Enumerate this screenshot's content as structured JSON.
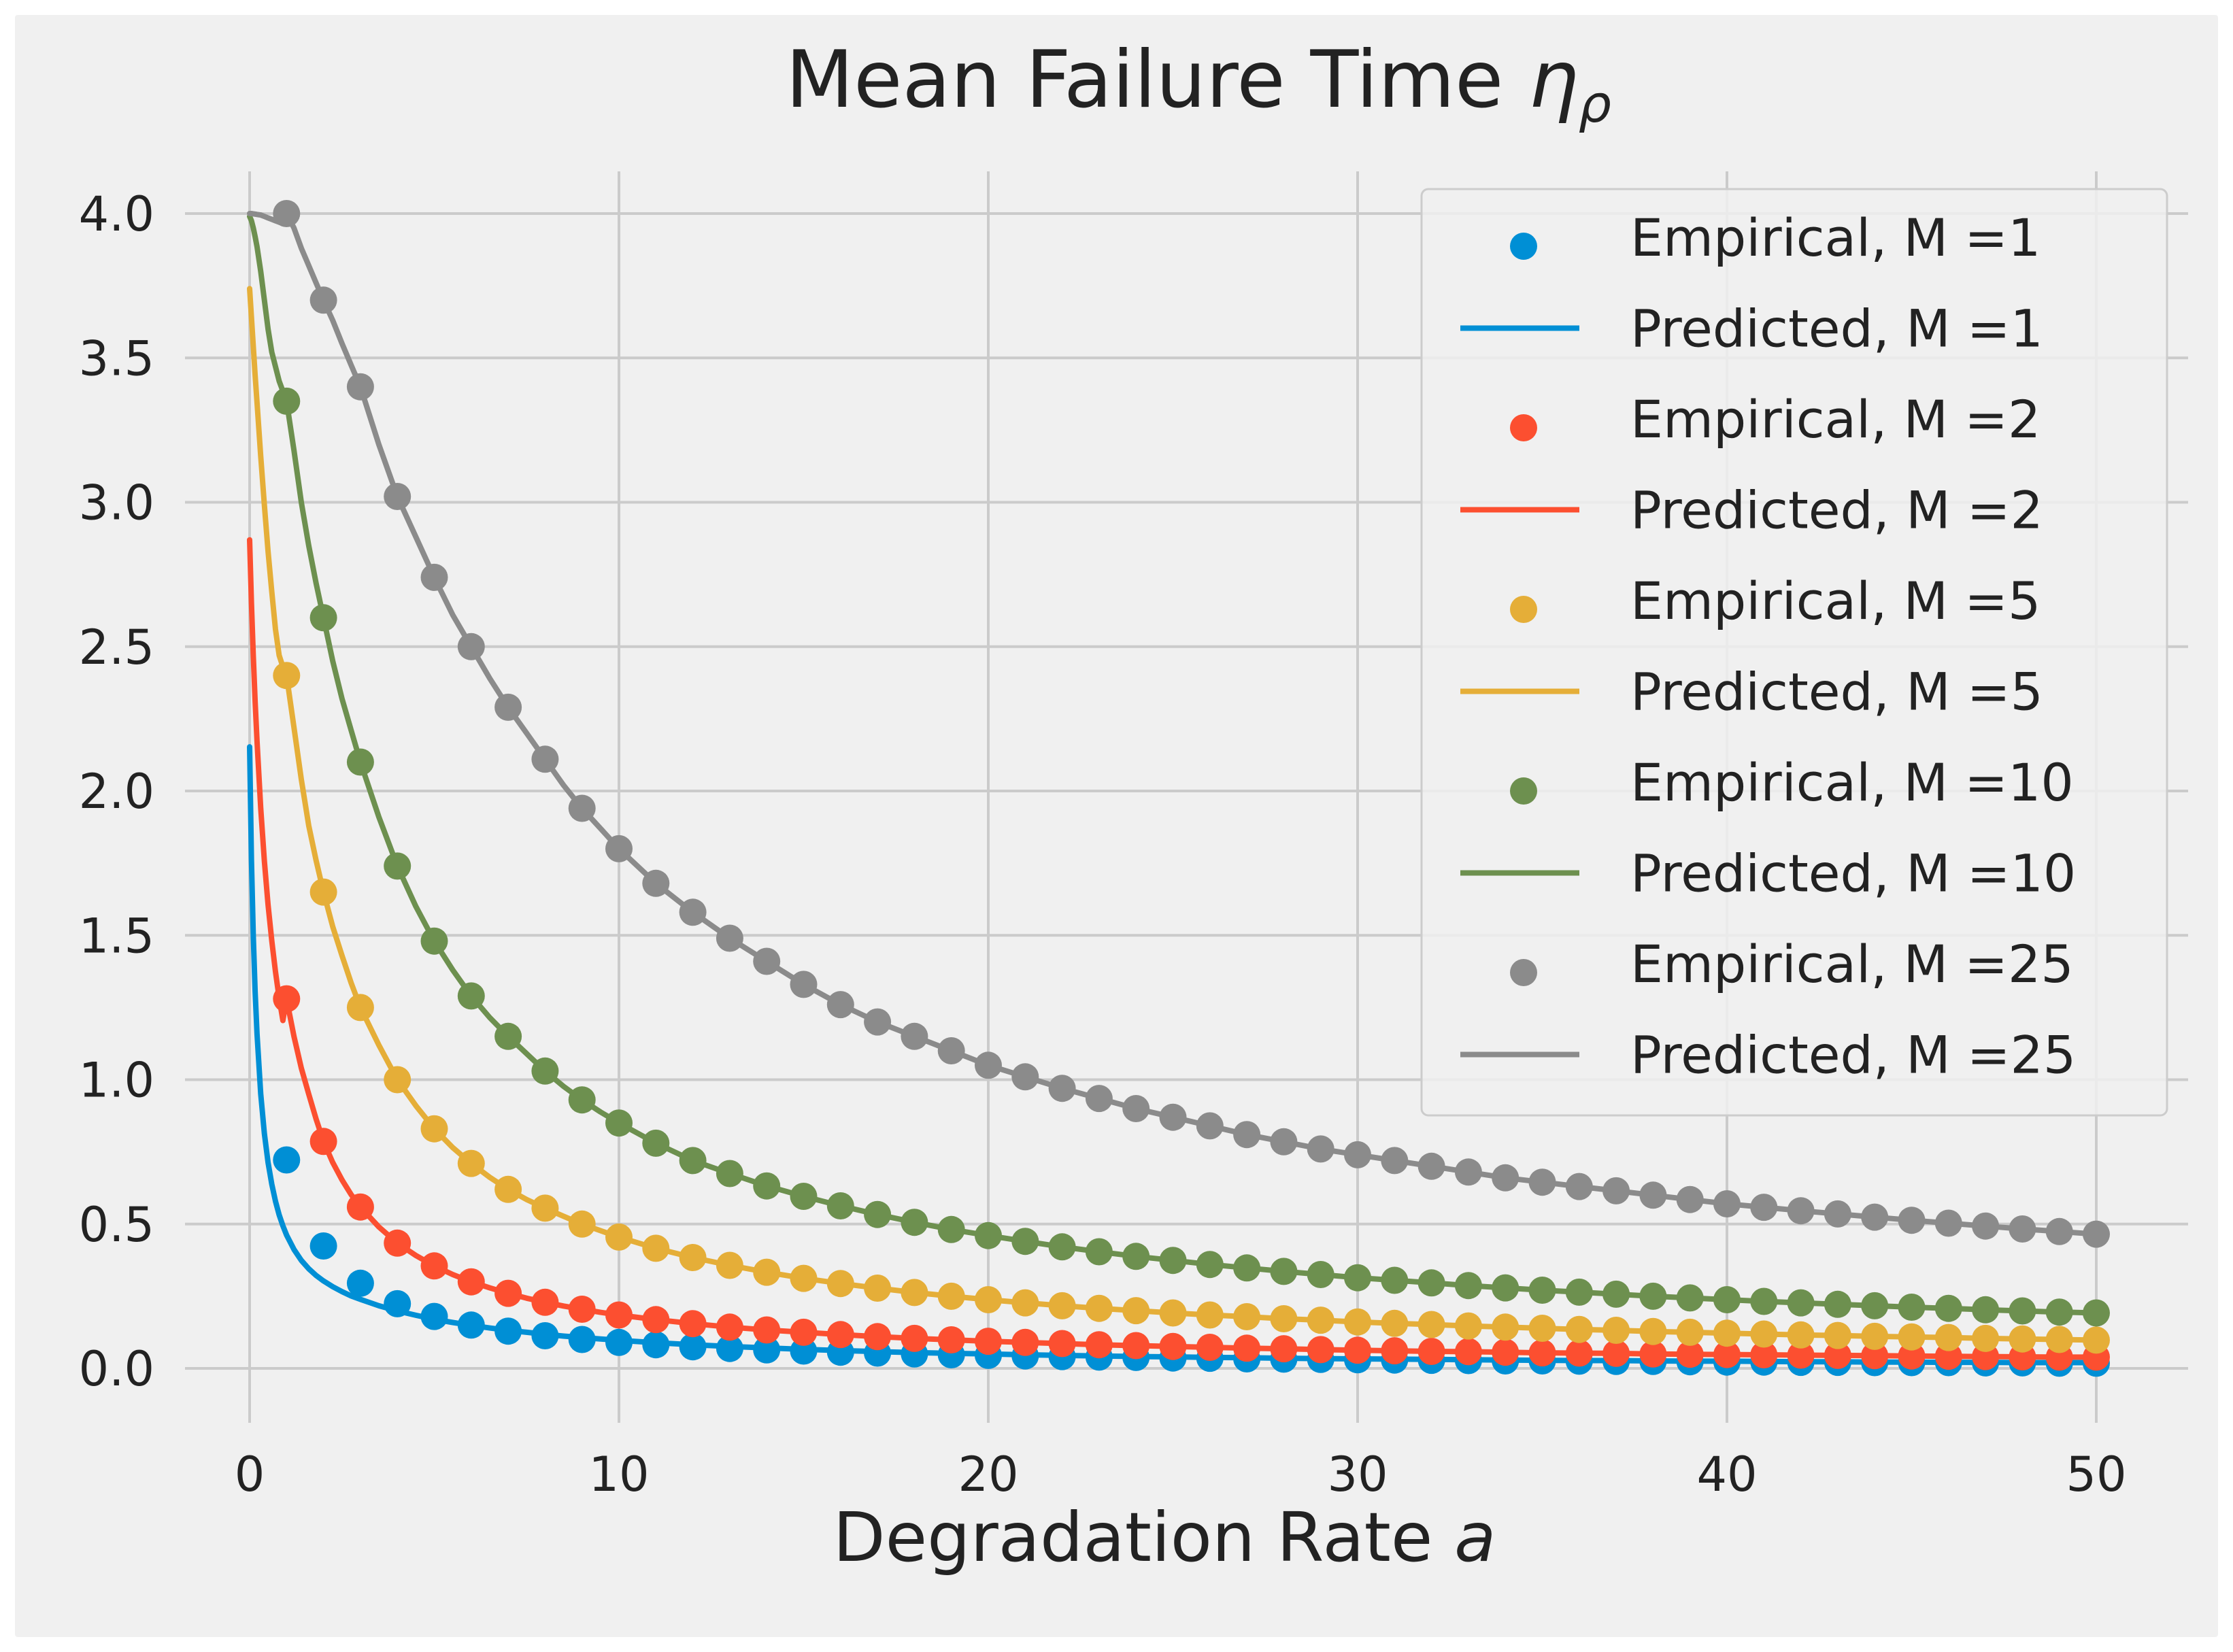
{
  "chart_data": {
    "type": "line",
    "title": "Mean Failure Time",
    "title_symbol": "η",
    "title_subscript": "ρ",
    "xlabel": "Degradation Rate",
    "xlabel_symbol": "a",
    "ylabel": "",
    "xlim": [
      -2.5,
      52.5
    ],
    "ylim": [
      -0.1,
      4.17
    ],
    "x_ticks": [
      0,
      10,
      20,
      30,
      40,
      50
    ],
    "x_tick_labels": [
      "0",
      "10",
      "20",
      "30",
      "40",
      "50"
    ],
    "y_ticks": [
      0.0,
      0.5,
      1.0,
      1.5,
      2.0,
      2.5,
      3.0,
      3.5,
      4.0
    ],
    "y_tick_labels": [
      "0.0",
      "0.5",
      "1.0",
      "1.5",
      "2.0",
      "2.5",
      "3.0",
      "3.5",
      "4.0"
    ],
    "grid": true,
    "legend_position": "top-right",
    "empirical_x": [
      1,
      2,
      3,
      4,
      5,
      6,
      7,
      8,
      9,
      10,
      11,
      12,
      13,
      14,
      15,
      16,
      17,
      18,
      19,
      20,
      21,
      22,
      23,
      24,
      25,
      26,
      27,
      28,
      29,
      30,
      31,
      32,
      33,
      34,
      35,
      36,
      37,
      38,
      39,
      40,
      41,
      42,
      43,
      44,
      45,
      46,
      47,
      48,
      49,
      50
    ],
    "predicted_x": [
      0,
      0.05,
      0.1,
      0.15,
      0.2,
      0.3,
      0.4,
      0.5,
      0.6,
      0.7,
      0.8,
      0.9,
      1,
      1.2,
      1.4,
      1.6,
      1.8,
      2,
      2.25,
      2.5,
      2.75,
      3,
      3.5,
      4,
      4.5,
      5,
      5.5,
      6,
      6.5,
      7,
      7.5,
      8,
      8.5,
      9,
      9.5,
      10,
      11,
      12,
      13,
      14,
      15,
      16,
      17,
      18,
      19,
      20,
      21,
      22,
      23,
      24,
      25,
      26,
      27,
      28,
      29,
      30,
      31,
      32,
      33,
      34,
      35,
      36,
      37,
      38,
      39,
      40,
      41,
      42,
      43,
      44,
      45,
      46,
      47,
      48,
      49,
      50
    ],
    "series": [
      {
        "name": "M =1",
        "color": "#008fd5",
        "empirical_label": "Empirical, M =1",
        "predicted_label": "Predicted, M =1",
        "empirical_values": [
          0.722,
          0.424,
          0.295,
          0.224,
          0.18,
          0.15,
          0.129,
          0.113,
          0.1,
          0.09,
          0.082,
          0.075,
          0.069,
          0.064,
          0.06,
          0.056,
          0.053,
          0.05,
          0.047,
          0.045,
          0.043,
          0.041,
          0.039,
          0.038,
          0.036,
          0.035,
          0.033,
          0.032,
          0.031,
          0.03,
          0.029,
          0.028,
          0.027,
          0.026,
          0.026,
          0.025,
          0.024,
          0.024,
          0.023,
          0.022,
          0.022,
          0.021,
          0.021,
          0.02,
          0.02,
          0.02,
          0.019,
          0.019,
          0.018,
          0.018
        ],
        "predicted_values": [
          2.153,
          1.76,
          1.497,
          1.305,
          1.158,
          0.951,
          0.813,
          0.713,
          0.638,
          0.579,
          0.532,
          0.494,
          0.462,
          0.412,
          0.374,
          0.345,
          0.322,
          0.303,
          0.283,
          0.266,
          0.251,
          0.239,
          0.217,
          0.199,
          0.184,
          0.17,
          0.159,
          0.149,
          0.14,
          0.132,
          0.125,
          0.118,
          0.112,
          0.107,
          0.102,
          0.097,
          0.089,
          0.082,
          0.076,
          0.071,
          0.066,
          0.062,
          0.058,
          0.055,
          0.052,
          0.05,
          0.047,
          0.045,
          0.043,
          0.041,
          0.04,
          0.038,
          0.037,
          0.035,
          0.034,
          0.033,
          0.032,
          0.031,
          0.03,
          0.029,
          0.028,
          0.027,
          0.027,
          0.026,
          0.025,
          0.025,
          0.024,
          0.023,
          0.023,
          0.022,
          0.022,
          0.021,
          0.021,
          0.02,
          0.02,
          0.02
        ]
      },
      {
        "name": "M =2",
        "color": "#fc4f30",
        "empirical_label": "Empirical, M =2",
        "predicted_label": "Predicted, M =2",
        "empirical_values": [
          1.28,
          0.786,
          0.559,
          0.434,
          0.355,
          0.3,
          0.26,
          0.229,
          0.205,
          0.185,
          0.169,
          0.155,
          0.143,
          0.133,
          0.125,
          0.117,
          0.11,
          0.104,
          0.099,
          0.094,
          0.09,
          0.086,
          0.082,
          0.079,
          0.076,
          0.073,
          0.07,
          0.068,
          0.065,
          0.063,
          0.061,
          0.059,
          0.058,
          0.056,
          0.054,
          0.053,
          0.052,
          0.05,
          0.049,
          0.048,
          0.047,
          0.046,
          0.045,
          0.044,
          0.043,
          0.042,
          0.041,
          0.04,
          0.039,
          0.039
        ],
        "predicted_values": [
          2.87,
          2.65,
          2.468,
          2.31,
          2.172,
          1.941,
          1.757,
          1.606,
          1.481,
          1.374,
          1.283,
          1.205,
          1.28,
          1.15,
          1.04,
          0.95,
          0.864,
          0.786,
          0.713,
          0.653,
          0.602,
          0.559,
          0.49,
          0.434,
          0.391,
          0.355,
          0.325,
          0.3,
          0.279,
          0.26,
          0.243,
          0.229,
          0.216,
          0.205,
          0.194,
          0.185,
          0.169,
          0.155,
          0.143,
          0.133,
          0.125,
          0.117,
          0.11,
          0.104,
          0.099,
          0.094,
          0.09,
          0.086,
          0.082,
          0.079,
          0.076,
          0.073,
          0.07,
          0.068,
          0.065,
          0.063,
          0.061,
          0.059,
          0.058,
          0.056,
          0.054,
          0.053,
          0.052,
          0.05,
          0.049,
          0.048,
          0.047,
          0.046,
          0.045,
          0.044,
          0.043,
          0.042,
          0.041,
          0.04,
          0.039,
          0.039
        ]
      },
      {
        "name": "M =5",
        "color": "#e5ae38",
        "empirical_label": "Empirical, M =5",
        "predicted_label": "Predicted, M =5",
        "empirical_values": [
          2.4,
          1.65,
          1.25,
          1.0,
          0.83,
          0.71,
          0.62,
          0.555,
          0.5,
          0.455,
          0.416,
          0.384,
          0.357,
          0.333,
          0.312,
          0.294,
          0.278,
          0.263,
          0.25,
          0.238,
          0.227,
          0.217,
          0.208,
          0.2,
          0.192,
          0.185,
          0.179,
          0.172,
          0.167,
          0.161,
          0.156,
          0.152,
          0.147,
          0.143,
          0.139,
          0.135,
          0.132,
          0.128,
          0.125,
          0.122,
          0.119,
          0.116,
          0.114,
          0.111,
          0.109,
          0.107,
          0.104,
          0.102,
          0.1,
          0.098
        ],
        "predicted_values": [
          3.74,
          3.64,
          3.54,
          3.44,
          3.345,
          3.16,
          2.99,
          2.83,
          2.69,
          2.56,
          2.47,
          2.43,
          2.4,
          2.22,
          2.04,
          1.88,
          1.76,
          1.65,
          1.53,
          1.43,
          1.335,
          1.25,
          1.12,
          1.0,
          0.91,
          0.83,
          0.765,
          0.71,
          0.662,
          0.62,
          0.585,
          0.555,
          0.527,
          0.5,
          0.477,
          0.455,
          0.416,
          0.384,
          0.357,
          0.333,
          0.312,
          0.294,
          0.278,
          0.263,
          0.25,
          0.238,
          0.227,
          0.217,
          0.208,
          0.2,
          0.192,
          0.185,
          0.179,
          0.172,
          0.167,
          0.161,
          0.156,
          0.152,
          0.147,
          0.143,
          0.139,
          0.135,
          0.132,
          0.128,
          0.125,
          0.122,
          0.119,
          0.116,
          0.114,
          0.111,
          0.109,
          0.107,
          0.104,
          0.102,
          0.1,
          0.098
        ]
      },
      {
        "name": "M =10",
        "color": "#6d904f",
        "empirical_label": "Empirical, M =10",
        "predicted_label": "Predicted, M =10",
        "empirical_values": [
          3.35,
          2.6,
          2.1,
          1.74,
          1.48,
          1.29,
          1.15,
          1.03,
          0.93,
          0.85,
          0.78,
          0.72,
          0.675,
          0.632,
          0.596,
          0.563,
          0.533,
          0.506,
          0.481,
          0.46,
          0.44,
          0.421,
          0.404,
          0.388,
          0.374,
          0.36,
          0.348,
          0.336,
          0.325,
          0.314,
          0.305,
          0.296,
          0.287,
          0.279,
          0.271,
          0.264,
          0.257,
          0.25,
          0.244,
          0.238,
          0.232,
          0.227,
          0.222,
          0.217,
          0.212,
          0.208,
          0.203,
          0.199,
          0.195,
          0.192
        ],
        "predicted_values": [
          3.99,
          3.975,
          3.95,
          3.92,
          3.885,
          3.8,
          3.7,
          3.6,
          3.52,
          3.47,
          3.42,
          3.385,
          3.35,
          3.18,
          3.0,
          2.85,
          2.72,
          2.6,
          2.45,
          2.32,
          2.21,
          2.1,
          1.91,
          1.74,
          1.6,
          1.48,
          1.38,
          1.29,
          1.215,
          1.15,
          1.09,
          1.03,
          0.977,
          0.93,
          0.888,
          0.85,
          0.78,
          0.72,
          0.675,
          0.632,
          0.596,
          0.563,
          0.533,
          0.506,
          0.481,
          0.46,
          0.44,
          0.421,
          0.404,
          0.388,
          0.374,
          0.36,
          0.348,
          0.336,
          0.325,
          0.314,
          0.305,
          0.296,
          0.287,
          0.279,
          0.271,
          0.264,
          0.257,
          0.25,
          0.244,
          0.238,
          0.232,
          0.227,
          0.222,
          0.217,
          0.212,
          0.208,
          0.203,
          0.199,
          0.195,
          0.192
        ]
      },
      {
        "name": "M =25",
        "color": "#8b8b8b",
        "empirical_label": "Empirical, M =25",
        "predicted_label": "Predicted, M =25",
        "empirical_values": [
          4.0,
          3.7,
          3.4,
          3.02,
          2.74,
          2.5,
          2.29,
          2.11,
          1.94,
          1.8,
          1.68,
          1.58,
          1.49,
          1.41,
          1.33,
          1.26,
          1.2,
          1.15,
          1.1,
          1.05,
          1.01,
          0.97,
          0.935,
          0.9,
          0.87,
          0.84,
          0.81,
          0.785,
          0.76,
          0.74,
          0.72,
          0.7,
          0.68,
          0.66,
          0.645,
          0.63,
          0.615,
          0.6,
          0.585,
          0.57,
          0.558,
          0.546,
          0.535,
          0.524,
          0.513,
          0.503,
          0.493,
          0.483,
          0.474,
          0.465
        ],
        "predicted_values": [
          4.0,
          4.0,
          3.999,
          3.998,
          3.997,
          3.995,
          3.99,
          3.985,
          3.98,
          3.975,
          3.97,
          3.965,
          4.0,
          3.95,
          3.88,
          3.82,
          3.76,
          3.7,
          3.63,
          3.55,
          3.475,
          3.4,
          3.2,
          3.02,
          2.88,
          2.74,
          2.61,
          2.5,
          2.39,
          2.29,
          2.2,
          2.11,
          2.02,
          1.94,
          1.87,
          1.8,
          1.68,
          1.58,
          1.49,
          1.41,
          1.33,
          1.26,
          1.2,
          1.15,
          1.1,
          1.05,
          1.01,
          0.97,
          0.935,
          0.9,
          0.87,
          0.84,
          0.81,
          0.785,
          0.76,
          0.74,
          0.72,
          0.7,
          0.68,
          0.66,
          0.645,
          0.63,
          0.615,
          0.6,
          0.585,
          0.57,
          0.558,
          0.546,
          0.535,
          0.524,
          0.513,
          0.503,
          0.493,
          0.483,
          0.474,
          0.465
        ]
      }
    ]
  }
}
